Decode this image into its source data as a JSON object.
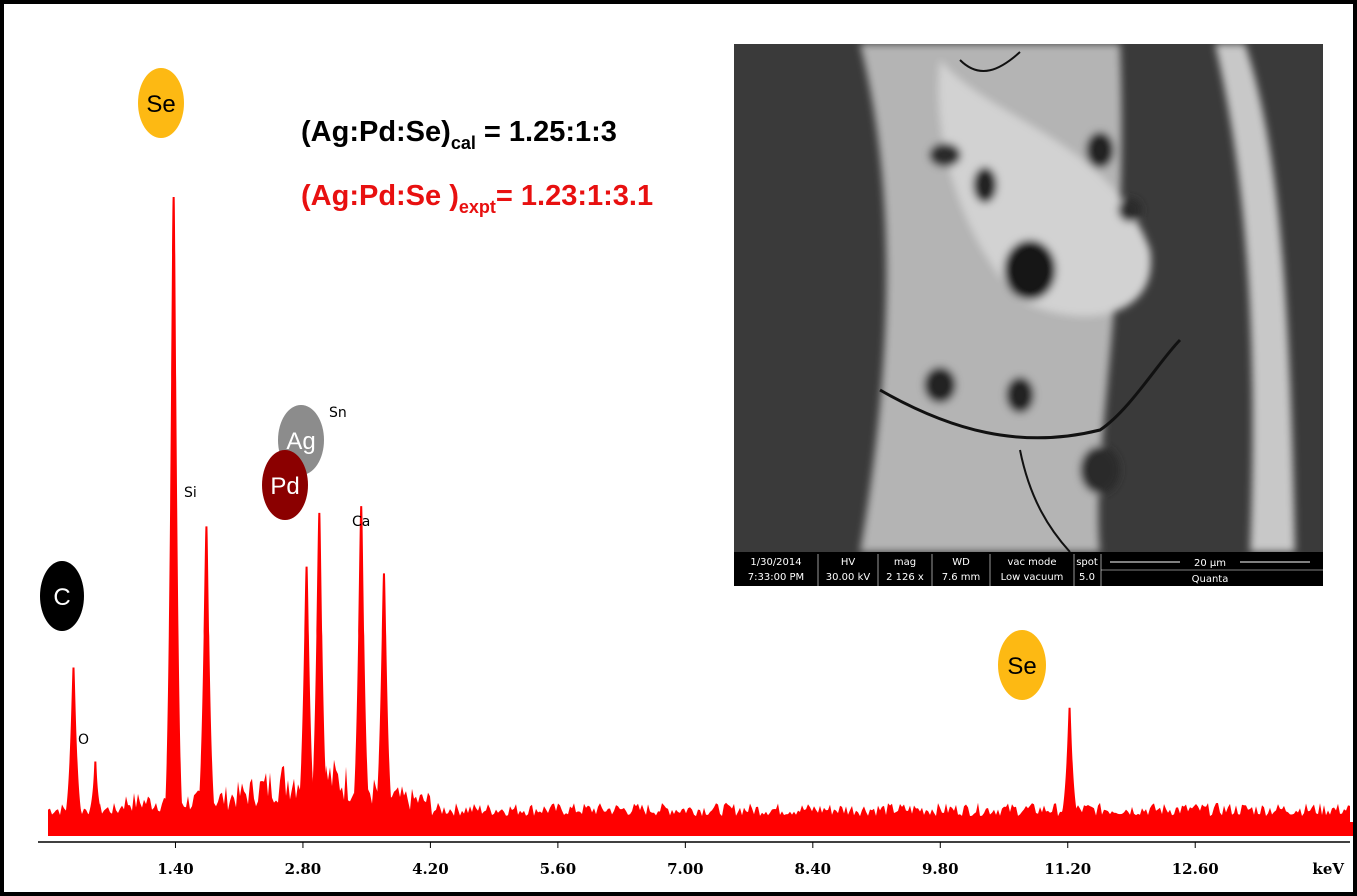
{
  "chart_data": {
    "type": "spectrum",
    "xlabel": "keV",
    "x_ticks": [
      "1.40",
      "2.80",
      "4.20",
      "5.60",
      "7.00",
      "8.40",
      "9.80",
      "11.20",
      "12.60"
    ],
    "xlim": [
      0,
      14.3
    ],
    "ylim": [
      0,
      100
    ],
    "peaks": [
      {
        "label": "C",
        "x": 0.28,
        "y": 23
      },
      {
        "label": "O",
        "x": 0.52,
        "y": 9
      },
      {
        "label": "Se",
        "x": 1.38,
        "y": 93
      },
      {
        "label": "Si",
        "x": 1.74,
        "y": 44
      },
      {
        "label": "Pd",
        "x": 2.84,
        "y": 38
      },
      {
        "label": "Ag",
        "x": 2.98,
        "y": 46
      },
      {
        "label": "Sn",
        "x": 3.44,
        "y": 47
      },
      {
        "label": "Ca",
        "x": 3.69,
        "y": 37
      },
      {
        "label": "Se",
        "x": 11.22,
        "y": 17
      }
    ],
    "element_labels": {
      "C": "C",
      "O": "O",
      "Se": "Se",
      "Si": "Si",
      "Pd": "Pd",
      "Ag": "Ag",
      "Sn": "Sn",
      "Ca": "Ca"
    },
    "colors": {
      "spectrum": "#ff0000",
      "Se": "#fdb913",
      "Pd": "#8b0000",
      "Ag": "#8c8c8c",
      "C": "#000000"
    }
  },
  "annotations": {
    "calc_prefix": "(Ag:Pd:Se)",
    "calc_sub": "cal",
    "calc_value": " = 1.25:1:3",
    "expt_prefix": "(Ag:Pd:Se )",
    "expt_sub": "expt",
    "expt_value": "= 1.23:1:3.1",
    "expt_color": "#e81010"
  },
  "sem_inset": {
    "date": "1/30/2014",
    "time": "7:33:00 PM",
    "hv_label": "HV",
    "hv_value": "30.00 kV",
    "mag_label": "mag",
    "mag_value": "2 126 x",
    "wd_label": "WD",
    "wd_value": "7.6 mm",
    "vac_label": "vac mode",
    "vac_value": "Low vacuum",
    "spot_label": "spot",
    "spot_value": "5.0",
    "scale_label": "20 µm",
    "brand": "Quanta"
  }
}
